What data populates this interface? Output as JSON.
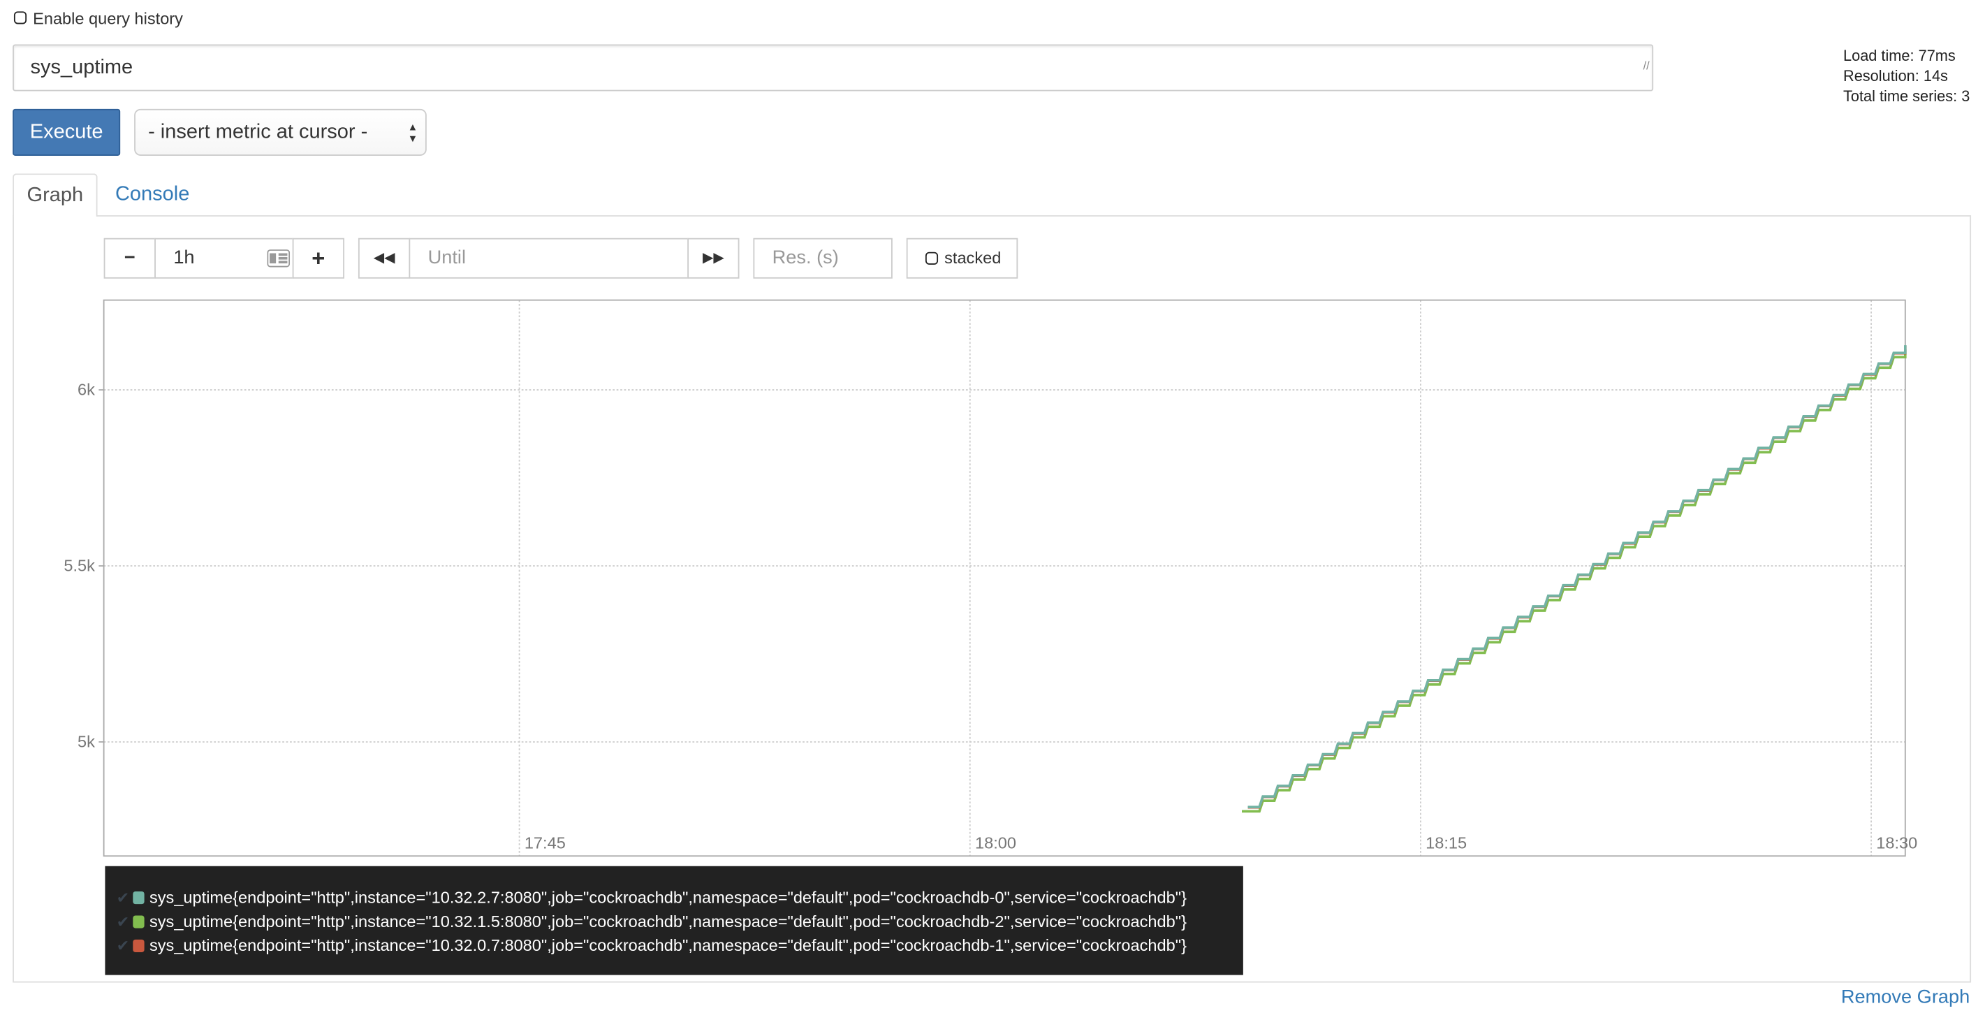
{
  "query_history": {
    "label": "Enable query history",
    "checked": false
  },
  "expression": {
    "value": "sys_uptime"
  },
  "stats": {
    "load_time": "Load time: 77ms",
    "resolution": "Resolution: 14s",
    "total_series": "Total time series: 3"
  },
  "execute_label": "Execute",
  "insert_metric": {
    "selected": "- insert metric at cursor -"
  },
  "tabs": [
    {
      "label": "Graph",
      "active": true
    },
    {
      "label": "Console",
      "active": false
    }
  ],
  "controls": {
    "range_value": "1h",
    "until_placeholder": "Until",
    "res_placeholder": "Res. (s)",
    "stacked_label": "stacked",
    "icons": [
      "minus-icon",
      "calendar-icon",
      "plus-icon",
      "backward-icon",
      "forward-icon"
    ]
  },
  "remove_graph": "Remove Graph",
  "chart_data": {
    "type": "line",
    "interpolation": "step",
    "grid": true,
    "legend_position": "bottom-left",
    "x_ticks": [
      "17:45",
      "18:00",
      "18:15",
      "18:30"
    ],
    "y_ticks": [
      "5k",
      "5.5k",
      "6k"
    ],
    "xlim": [
      "17:31:10",
      "18:31:08"
    ],
    "ylim": [
      4676,
      6255
    ],
    "x": [
      "18:09:15",
      "18:09:45",
      "18:10:15",
      "18:10:45",
      "18:11:15",
      "18:11:45",
      "18:12:15",
      "18:12:45",
      "18:13:15",
      "18:13:45",
      "18:14:15",
      "18:14:45",
      "18:15:15",
      "18:15:45",
      "18:16:15",
      "18:16:45",
      "18:17:15",
      "18:17:45",
      "18:18:15",
      "18:18:45",
      "18:19:15",
      "18:19:45",
      "18:20:15",
      "18:20:45",
      "18:21:15",
      "18:21:45",
      "18:22:15",
      "18:22:45",
      "18:23:15",
      "18:23:45",
      "18:24:15",
      "18:24:45",
      "18:25:15",
      "18:25:45",
      "18:26:15",
      "18:26:45",
      "18:27:15",
      "18:27:45",
      "18:28:15",
      "18:28:45",
      "18:29:15",
      "18:29:45",
      "18:30:15",
      "18:30:45"
    ],
    "series": [
      {
        "name": "sys_uptime{endpoint=\"http\",instance=\"10.32.2.7:8080\",job=\"cockroachdb\",namespace=\"default\",pod=\"cockroachdb-0\",service=\"cockroachdb\"}",
        "color": "#72b3a3",
        "values": [
          4815,
          4845,
          4875,
          4905,
          4935,
          4965,
          4995,
          5025,
          5055,
          5085,
          5115,
          5145,
          5175,
          5205,
          5235,
          5265,
          5295,
          5325,
          5355,
          5385,
          5415,
          5445,
          5475,
          5505,
          5535,
          5565,
          5595,
          5625,
          5655,
          5685,
          5715,
          5745,
          5775,
          5805,
          5835,
          5865,
          5895,
          5925,
          5955,
          5985,
          6015,
          6045,
          6075,
          6105
        ]
      },
      {
        "name": "sys_uptime{endpoint=\"http\",instance=\"10.32.1.5:8080\",job=\"cockroachdb\",namespace=\"default\",pod=\"cockroachdb-2\",service=\"cockroachdb\"}",
        "color": "#82bd4f",
        "values": [
          4803,
          4833,
          4863,
          4893,
          4923,
          4953,
          4983,
          5013,
          5043,
          5073,
          5103,
          5133,
          5163,
          5193,
          5223,
          5253,
          5283,
          5313,
          5343,
          5373,
          5403,
          5433,
          5463,
          5493,
          5523,
          5553,
          5583,
          5613,
          5643,
          5673,
          5703,
          5733,
          5763,
          5793,
          5823,
          5853,
          5883,
          5913,
          5943,
          5973,
          6003,
          6033,
          6063,
          6093
        ]
      },
      {
        "name": "sys_uptime{endpoint=\"http\",instance=\"10.32.0.7:8080\",job=\"cockroachdb\",namespace=\"default\",pod=\"cockroachdb-1\",service=\"cockroachdb\"}",
        "color": "#c9583e",
        "values": [
          4814,
          4844,
          4874,
          4904,
          4934,
          4964,
          4994,
          5024,
          5054,
          5084,
          5114,
          5144,
          5174,
          5204,
          5234,
          5264,
          5294,
          5324,
          5354,
          5384,
          5414,
          5444,
          5474,
          5504,
          5534,
          5564,
          5594,
          5624,
          5654,
          5684,
          5714,
          5744,
          5774,
          5804,
          5834,
          5864,
          5894,
          5924,
          5954,
          5984,
          6014,
          6044,
          6074,
          6104
        ]
      }
    ]
  }
}
